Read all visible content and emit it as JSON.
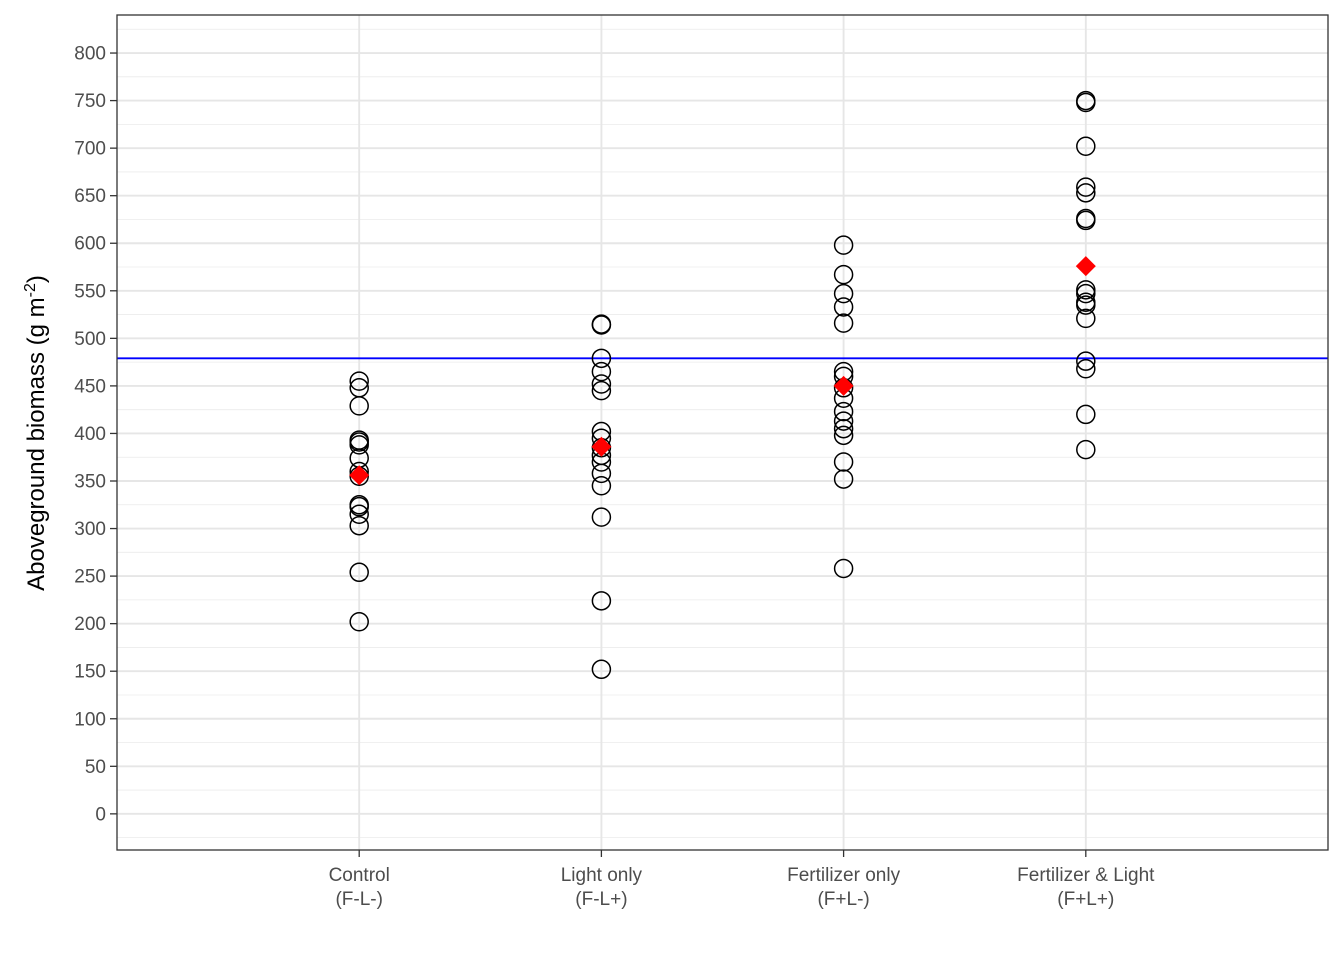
{
  "chart_data": {
    "type": "scatter",
    "ylabel": {
      "main": "Aboveground biomass (g m",
      "sup": "-2",
      "close": ")"
    },
    "ylim": [
      -38,
      840
    ],
    "yticks": [
      0,
      50,
      100,
      150,
      200,
      250,
      300,
      350,
      400,
      450,
      500,
      550,
      600,
      650,
      700,
      750,
      800
    ],
    "reference_line": {
      "y": 479,
      "color": "#0000ff"
    },
    "grid": true,
    "categories": [
      {
        "line1": "Control",
        "line2": "(F-L-)"
      },
      {
        "line1": "Light only",
        "line2": "(F-L+)"
      },
      {
        "line1": "Fertilizer only",
        "line2": "(F+L-)"
      },
      {
        "line1": "Fertilizer & Light",
        "line2": "(F+L+)"
      }
    ],
    "series": [
      {
        "marker": "open-circle",
        "color": "#000000",
        "values": [
          [
            455,
            448,
            429,
            393,
            391,
            388,
            374,
            360,
            355,
            325,
            323,
            315,
            303,
            254,
            202
          ],
          [
            515,
            514,
            479,
            465,
            452,
            445,
            402,
            395,
            385,
            377,
            370,
            358,
            345,
            312,
            224,
            152
          ],
          [
            598,
            567,
            547,
            533,
            516,
            465,
            460,
            448,
            437,
            423,
            413,
            405,
            398,
            370,
            352,
            258
          ],
          [
            750,
            748,
            702,
            659,
            653,
            626,
            624,
            551,
            547,
            538,
            535,
            521,
            476,
            468,
            420,
            383
          ]
        ]
      },
      {
        "marker": "diamond",
        "color": "#ff0000",
        "values": [
          356,
          386,
          450,
          576
        ]
      }
    ]
  }
}
